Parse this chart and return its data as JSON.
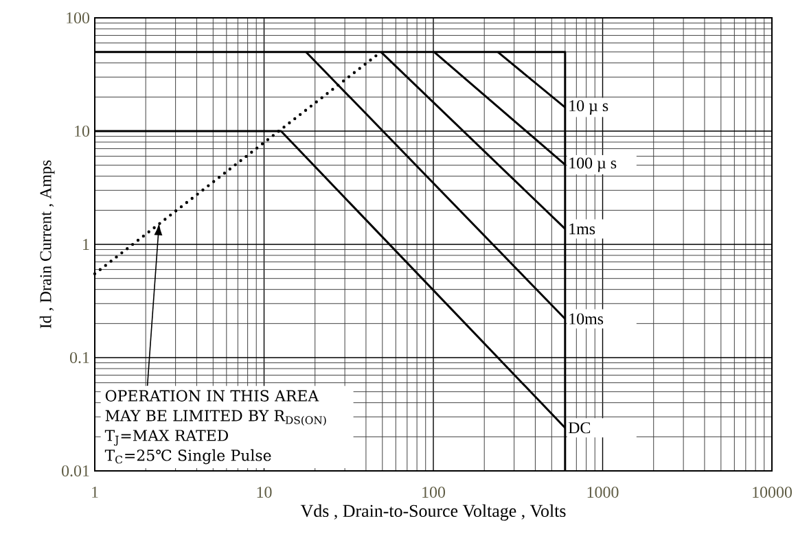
{
  "chart_data": {
    "type": "line",
    "xlabel": "Vds , Drain-to-Source Voltage , Volts",
    "ylabel": "Id , Drain Current , Amps",
    "log": "xy",
    "grid": true,
    "marker": "none",
    "line_style": "solid",
    "xlim": [
      1,
      10000
    ],
    "xticks": [
      1,
      10,
      100,
      1000,
      10000
    ],
    "ylim": [
      0.01,
      100
    ],
    "yticks": [
      0.01,
      0.1,
      1,
      10,
      100
    ],
    "series": [
      {
        "color": "#000000",
        "x": [
          1,
          600,
          600
        ],
        "values": [
          50,
          50,
          0.01
        ]
      },
      {
        "name": "10 µ s",
        "color": "#000000",
        "x": [
          240,
          600
        ],
        "values": [
          50,
          16.2
        ]
      },
      {
        "name": "100 µ s",
        "color": "#000000",
        "x": [
          101,
          600
        ],
        "values": [
          50,
          5.05
        ]
      },
      {
        "name": "1ms",
        "color": "#000000",
        "x": [
          49,
          600
        ],
        "values": [
          50,
          1.37
        ]
      },
      {
        "name": "10ms",
        "color": "#000000",
        "x": [
          17.7,
          600
        ],
        "values": [
          50,
          0.22
        ]
      },
      {
        "name": "DC",
        "color": "#000000",
        "x": [
          1,
          12.6,
          600
        ],
        "values": [
          10,
          10,
          0.024
        ]
      },
      {
        "color": "#000000",
        "line_style": "dotted",
        "x": [
          1,
          49
        ],
        "values": [
          0.55,
          50
        ]
      }
    ],
    "annotations": [
      {
        "text": "OPERATION IN THIS AREA MAY BE LIMITED BY R$_{DS(ON)}$",
        "x": 2.4,
        "y": 1.55
      },
      "T$_{J}$=MAX RATED",
      "T$_{C}$=25℃  Single Pulse"
    ]
  }
}
